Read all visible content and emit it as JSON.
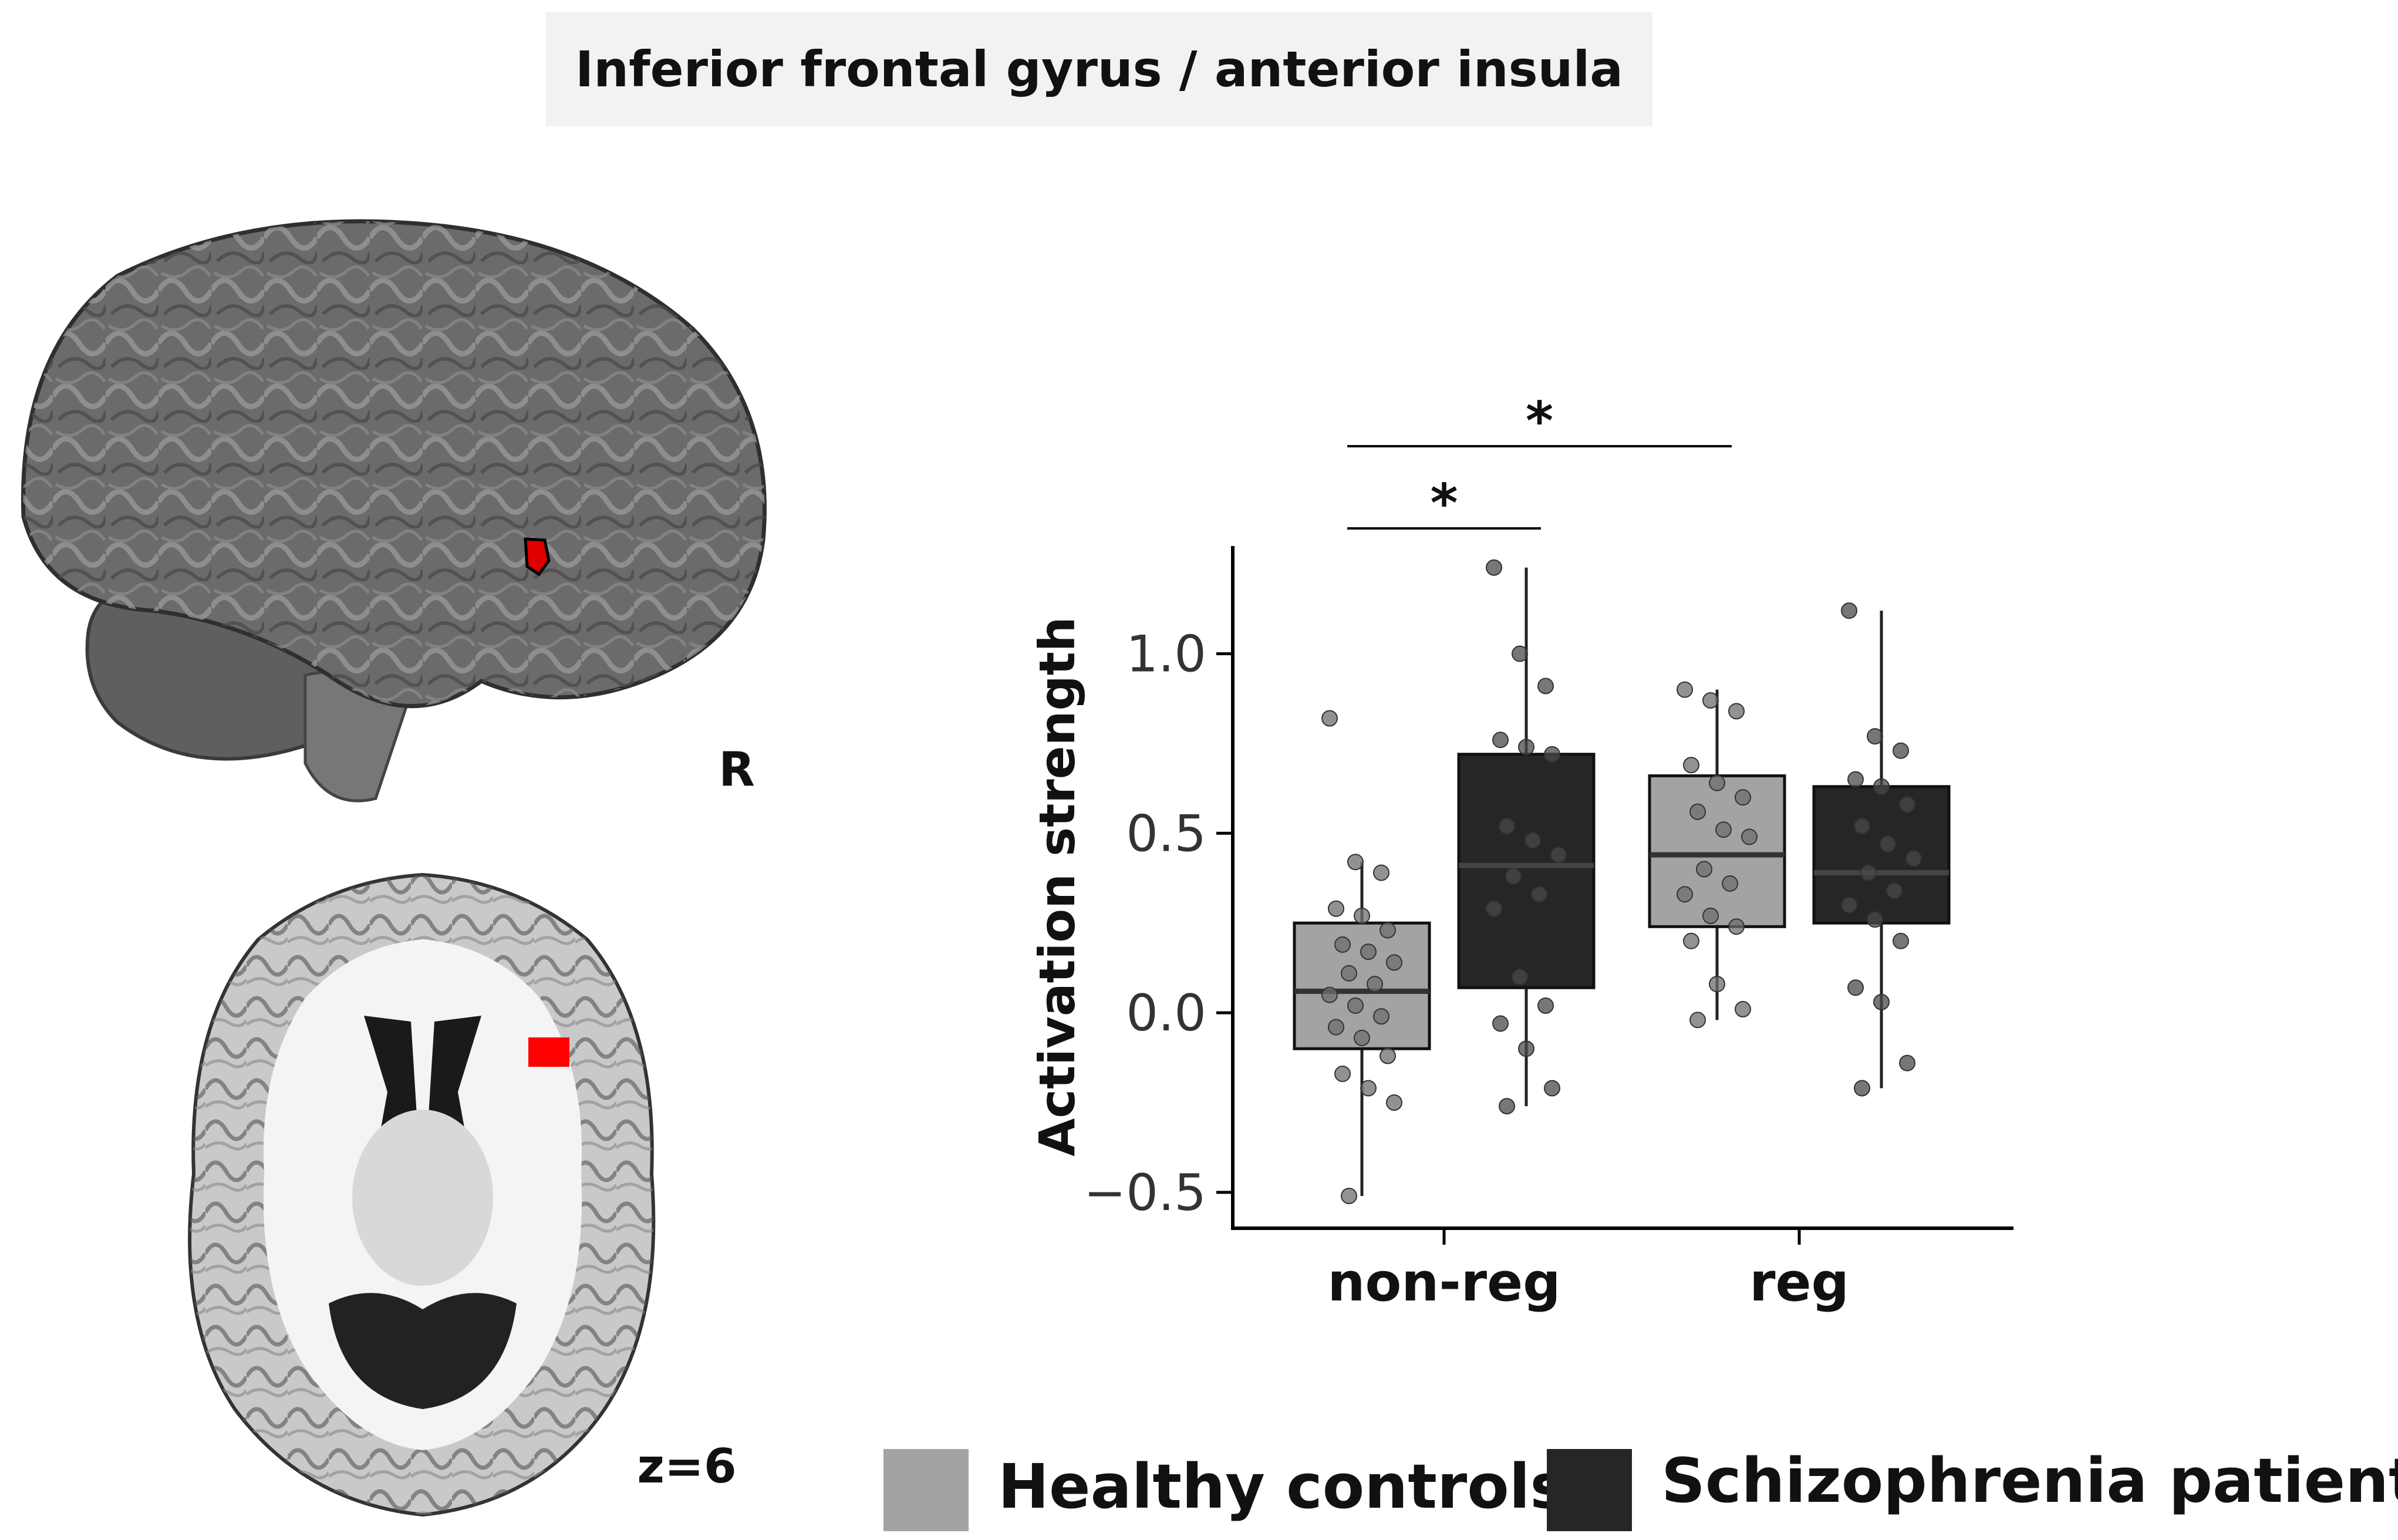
{
  "title": "Inferior frontal gyrus / anterior insula",
  "sagittal_label": "R",
  "axial_label": "z=6",
  "colors": {
    "healthy": "#a3a3a3",
    "patients": "#262626",
    "highlight": "#e00000",
    "brain": "#6b6b6b"
  },
  "chart_data": {
    "type": "box",
    "categories": [
      "non-reg",
      "reg"
    ],
    "ylabel": "Activation strength",
    "xlabel": "",
    "ylim": [
      -0.6,
      1.3
    ],
    "yticks": [
      -0.5,
      0.0,
      0.5,
      1.0
    ],
    "ytick_labels": [
      "−0.5",
      "0.0",
      "0.5",
      "1.0"
    ],
    "legend": {
      "placement": "bottom"
    },
    "series": [
      {
        "name": "Healthy controls",
        "boxes": [
          {
            "category": "non-reg",
            "whisker_low": -0.51,
            "q1": -0.1,
            "median": 0.06,
            "q3": 0.25,
            "whisker_high": 0.42,
            "points": [
              0.82,
              0.42,
              0.39,
              0.29,
              0.27,
              0.23,
              0.19,
              0.17,
              0.14,
              0.11,
              0.08,
              0.05,
              0.02,
              -0.01,
              -0.04,
              -0.07,
              -0.12,
              -0.17,
              -0.21,
              -0.25,
              -0.51
            ]
          },
          {
            "category": "reg",
            "whisker_low": -0.02,
            "q1": 0.24,
            "median": 0.44,
            "q3": 0.66,
            "whisker_high": 0.9,
            "points": [
              0.9,
              0.87,
              0.84,
              0.69,
              0.64,
              0.6,
              0.56,
              0.51,
              0.49,
              0.4,
              0.36,
              0.33,
              0.27,
              0.24,
              0.2,
              0.08,
              0.01,
              -0.02
            ]
          }
        ]
      },
      {
        "name": "Schizophrenia patients",
        "boxes": [
          {
            "category": "non-reg",
            "whisker_low": -0.26,
            "q1": 0.07,
            "median": 0.41,
            "q3": 0.72,
            "whisker_high": 1.24,
            "points": [
              1.24,
              1.0,
              0.91,
              0.76,
              0.74,
              0.72,
              0.52,
              0.48,
              0.44,
              0.38,
              0.33,
              0.29,
              0.1,
              0.02,
              -0.03,
              -0.1,
              -0.21,
              -0.26
            ]
          },
          {
            "category": "reg",
            "whisker_low": -0.21,
            "q1": 0.25,
            "median": 0.39,
            "q3": 0.63,
            "whisker_high": 1.12,
            "points": [
              1.12,
              0.77,
              0.73,
              0.65,
              0.63,
              0.58,
              0.52,
              0.47,
              0.43,
              0.39,
              0.34,
              0.3,
              0.26,
              0.2,
              0.07,
              0.03,
              -0.14,
              -0.21
            ]
          }
        ]
      }
    ],
    "significance": [
      {
        "from": "non-reg Healthy controls",
        "to": "non-reg Schizophrenia patients",
        "label": "*"
      },
      {
        "from": "non-reg Healthy controls",
        "to": "reg Healthy controls",
        "label": "*"
      }
    ]
  }
}
